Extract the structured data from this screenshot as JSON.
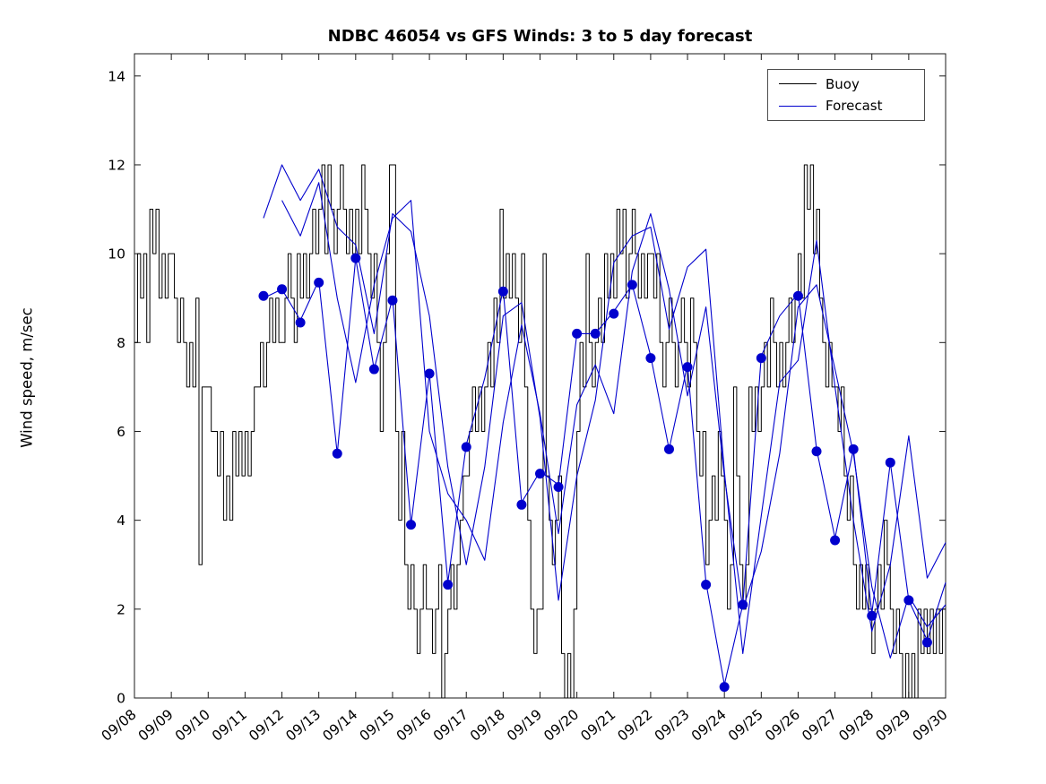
{
  "chart_data": {
    "type": "line",
    "title": "NDBC 46054 vs GFS Winds: 3 to 5 day forecast",
    "xlabel": "",
    "ylabel": "Wind speed, m/sec",
    "ylim": [
      0,
      14.5
    ],
    "yticks": [
      0,
      2,
      4,
      6,
      8,
      10,
      12,
      14
    ],
    "x_tick_labels": [
      "09/08",
      "09/09",
      "09/10",
      "09/11",
      "09/12",
      "09/13",
      "09/14",
      "09/15",
      "09/16",
      "09/17",
      "09/18",
      "09/19",
      "09/20",
      "09/21",
      "09/22",
      "09/23",
      "09/24",
      "09/25",
      "09/26",
      "09/27",
      "09/28",
      "09/29",
      "09/30"
    ],
    "grid": false,
    "legend_position": "top-right",
    "legend": [
      {
        "label": "Buoy",
        "color": "#000000"
      },
      {
        "label": "Forecast",
        "color": "#0000cd"
      }
    ],
    "series": [
      {
        "name": "Buoy",
        "color": "#000000",
        "style": "stairs",
        "line_width": 1,
        "t_start_days": 0,
        "t_step_days": 0.0833333,
        "values": [
          8,
          10,
          9,
          10,
          8,
          11,
          10,
          11,
          9,
          10,
          9,
          10,
          10,
          9,
          8,
          9,
          8,
          7,
          8,
          7,
          9,
          3,
          7,
          7,
          7,
          6,
          6,
          5,
          6,
          4,
          5,
          4,
          6,
          5,
          6,
          5,
          6,
          5,
          6,
          7,
          7,
          8,
          7,
          8,
          9,
          8,
          9,
          8,
          8,
          9,
          10,
          9,
          8,
          10,
          9,
          10,
          9,
          10,
          11,
          10,
          11,
          12,
          10,
          12,
          11,
          10,
          11,
          12,
          11,
          10,
          11,
          10,
          11,
          10,
          12,
          11,
          10,
          9,
          10,
          8,
          6,
          8,
          10,
          12,
          12,
          6,
          4,
          6,
          3,
          2,
          3,
          2,
          1,
          2,
          3,
          2,
          2,
          1,
          2,
          3,
          0,
          1,
          2,
          3,
          2,
          3,
          4,
          5,
          5,
          6,
          7,
          6,
          7,
          6,
          7,
          8,
          7,
          9,
          8,
          11,
          9,
          10,
          9,
          10,
          9,
          8,
          10,
          7,
          4,
          2,
          1,
          2,
          2,
          10,
          5,
          4,
          3,
          4,
          5,
          1,
          0,
          1,
          0,
          2,
          6,
          8,
          7,
          10,
          8,
          7,
          8,
          9,
          8,
          10,
          9,
          10,
          9,
          11,
          10,
          11,
          9,
          10,
          11,
          10,
          9,
          10,
          9,
          10,
          10,
          9,
          10,
          8,
          7,
          8,
          9,
          8,
          7,
          8,
          9,
          8,
          7,
          9,
          8,
          6,
          5,
          6,
          3,
          4,
          5,
          4,
          6,
          5,
          4,
          2,
          3,
          7,
          5,
          3,
          2,
          3,
          7,
          6,
          7,
          6,
          7,
          8,
          7,
          9,
          8,
          7,
          8,
          7,
          8,
          9,
          8,
          9,
          10,
          9,
          12,
          11,
          12,
          10,
          11,
          9,
          8,
          7,
          8,
          7,
          7,
          6,
          7,
          5,
          4,
          5,
          3,
          2,
          3,
          2,
          3,
          2,
          1,
          2,
          3,
          2,
          4,
          3,
          2,
          1,
          2,
          1,
          0,
          1,
          0,
          1,
          0,
          2,
          1,
          2,
          1,
          2,
          1,
          2,
          1,
          2,
          2
        ]
      },
      {
        "name": "Forecast run 1",
        "color": "#0000cd",
        "style": "line",
        "line_width": 1.1,
        "t_start_days": 3.5,
        "t_step_days": 0.5,
        "values": [
          9.0,
          9.2,
          8.5,
          9.4,
          5.5,
          9.9,
          7.4,
          9.0,
          3.9,
          7.3,
          2.6,
          5.7,
          7.2,
          9.2,
          4.4,
          5.1,
          4.8,
          8.2,
          8.2,
          8.7,
          9.3,
          7.7,
          5.6,
          7.5,
          2.6,
          0.3,
          2.1,
          7.7,
          8.6,
          9.1,
          5.6,
          3.6,
          5.6,
          1.9,
          5.3,
          2.2,
          1.3,
          2.6
        ]
      },
      {
        "name": "Forecast run 2",
        "color": "#0000cd",
        "style": "line",
        "line_width": 1.1,
        "t_start_days": 3.5,
        "t_step_days": 0.5,
        "values": [
          10.8,
          12.0,
          11.2,
          11.9,
          10.6,
          10.2,
          8.2,
          10.9,
          10.5,
          8.6,
          5.2,
          3.0,
          5.2,
          8.6,
          8.9,
          6.3,
          2.2,
          5.0,
          6.7,
          9.8,
          10.4,
          10.6,
          8.3,
          9.7,
          10.1,
          5.1,
          1.0,
          4.1,
          7.1,
          7.6,
          10.3,
          7.0,
          4.0,
          1.5,
          3.0,
          5.9,
          2.7,
          3.5
        ]
      },
      {
        "name": "Forecast run 3",
        "color": "#0000cd",
        "style": "line",
        "line_width": 1.1,
        "t_start_days": 4.0,
        "t_step_days": 0.5,
        "values": [
          11.2,
          10.4,
          11.6,
          9.0,
          7.1,
          9.3,
          10.8,
          11.2,
          6.0,
          4.6,
          4.0,
          3.1,
          6.2,
          8.4,
          6.4,
          3.7,
          6.6,
          7.5,
          6.4,
          9.6,
          10.9,
          9.2,
          6.8,
          8.8,
          5.0,
          2.0,
          3.3,
          5.5,
          8.8,
          9.3,
          7.4,
          5.5,
          2.5,
          0.9,
          2.3,
          1.6,
          2.1
        ]
      }
    ],
    "markers": {
      "name": "Forecast points",
      "color": "#0000cd",
      "radius": 5.5,
      "points": [
        [
          3.5,
          9.05
        ],
        [
          4.0,
          9.2
        ],
        [
          4.5,
          8.45
        ],
        [
          5.0,
          9.35
        ],
        [
          5.5,
          5.5
        ],
        [
          6.0,
          9.9
        ],
        [
          6.5,
          7.4
        ],
        [
          7.0,
          8.95
        ],
        [
          7.5,
          3.9
        ],
        [
          8.0,
          7.3
        ],
        [
          8.5,
          2.55
        ],
        [
          9.0,
          5.65
        ],
        [
          10.0,
          9.15
        ],
        [
          10.5,
          4.35
        ],
        [
          11.0,
          5.05
        ],
        [
          11.5,
          4.75
        ],
        [
          12.0,
          8.2
        ],
        [
          12.5,
          8.2
        ],
        [
          13.0,
          8.65
        ],
        [
          13.5,
          9.3
        ],
        [
          14.0,
          7.65
        ],
        [
          14.5,
          5.6
        ],
        [
          15.0,
          7.45
        ],
        [
          15.5,
          2.55
        ],
        [
          16.0,
          0.25
        ],
        [
          16.5,
          2.1
        ],
        [
          17.0,
          7.65
        ],
        [
          18.0,
          9.05
        ],
        [
          18.5,
          5.55
        ],
        [
          19.0,
          3.55
        ],
        [
          19.5,
          5.6
        ],
        [
          20.0,
          1.85
        ],
        [
          20.5,
          5.3
        ],
        [
          21.0,
          2.2
        ],
        [
          21.5,
          1.25
        ]
      ]
    }
  }
}
